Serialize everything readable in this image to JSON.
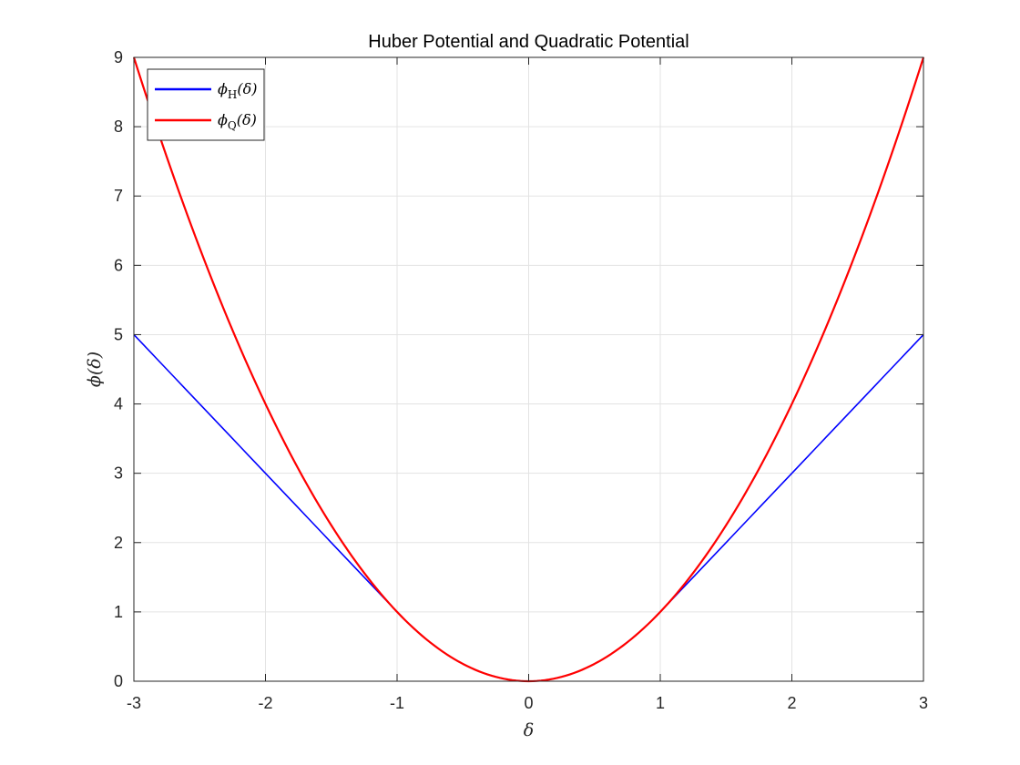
{
  "chart_data": {
    "type": "line",
    "title": "Huber Potential and Quadratic Potential",
    "xlabel": "δ",
    "ylabel": "ϕ(δ)",
    "xlim": [
      -3,
      3
    ],
    "ylim": [
      0,
      9
    ],
    "xticks": [
      -3,
      -2,
      -1,
      0,
      1,
      2,
      3
    ],
    "yticks": [
      0,
      1,
      2,
      3,
      4,
      5,
      6,
      7,
      8,
      9
    ],
    "xtick_labels": [
      "-3",
      "-2",
      "-1",
      "0",
      "1",
      "2",
      "3"
    ],
    "ytick_labels": [
      "0",
      "1",
      "2",
      "3",
      "4",
      "5",
      "6",
      "7",
      "8",
      "9"
    ],
    "grid": true,
    "legend_position": "top-left",
    "series": [
      {
        "name": "ϕH(δ)",
        "legend": {
          "symbol": "ϕ",
          "subscript": "H",
          "arg": "(δ)"
        },
        "color": "#0000ff",
        "x": [
          -3,
          -2.5,
          -2,
          -1.5,
          -1,
          -0.75,
          -0.5,
          -0.25,
          0,
          0.25,
          0.5,
          0.75,
          1,
          1.5,
          2,
          2.5,
          3
        ],
        "values": [
          5,
          4,
          3,
          2,
          1,
          0.5625,
          0.25,
          0.0625,
          0,
          0.0625,
          0.25,
          0.5625,
          1,
          2,
          3,
          4,
          5
        ]
      },
      {
        "name": "ϕQ(δ)",
        "legend": {
          "symbol": "ϕ",
          "subscript": "Q",
          "arg": "(δ)"
        },
        "color": "#ff0000",
        "x": [
          -3,
          -2.75,
          -2.5,
          -2.25,
          -2,
          -1.75,
          -1.5,
          -1.25,
          -1,
          -0.75,
          -0.5,
          -0.25,
          0,
          0.25,
          0.5,
          0.75,
          1,
          1.25,
          1.5,
          1.75,
          2,
          2.25,
          2.5,
          2.75,
          3
        ],
        "values": [
          9,
          7.5625,
          6.25,
          5.0625,
          4,
          3.0625,
          2.25,
          1.5625,
          1,
          0.5625,
          0.25,
          0.0625,
          0,
          0.0625,
          0.25,
          0.5625,
          1,
          1.5625,
          2.25,
          3.0625,
          4,
          5.0625,
          6.25,
          7.5625,
          9
        ]
      }
    ]
  }
}
